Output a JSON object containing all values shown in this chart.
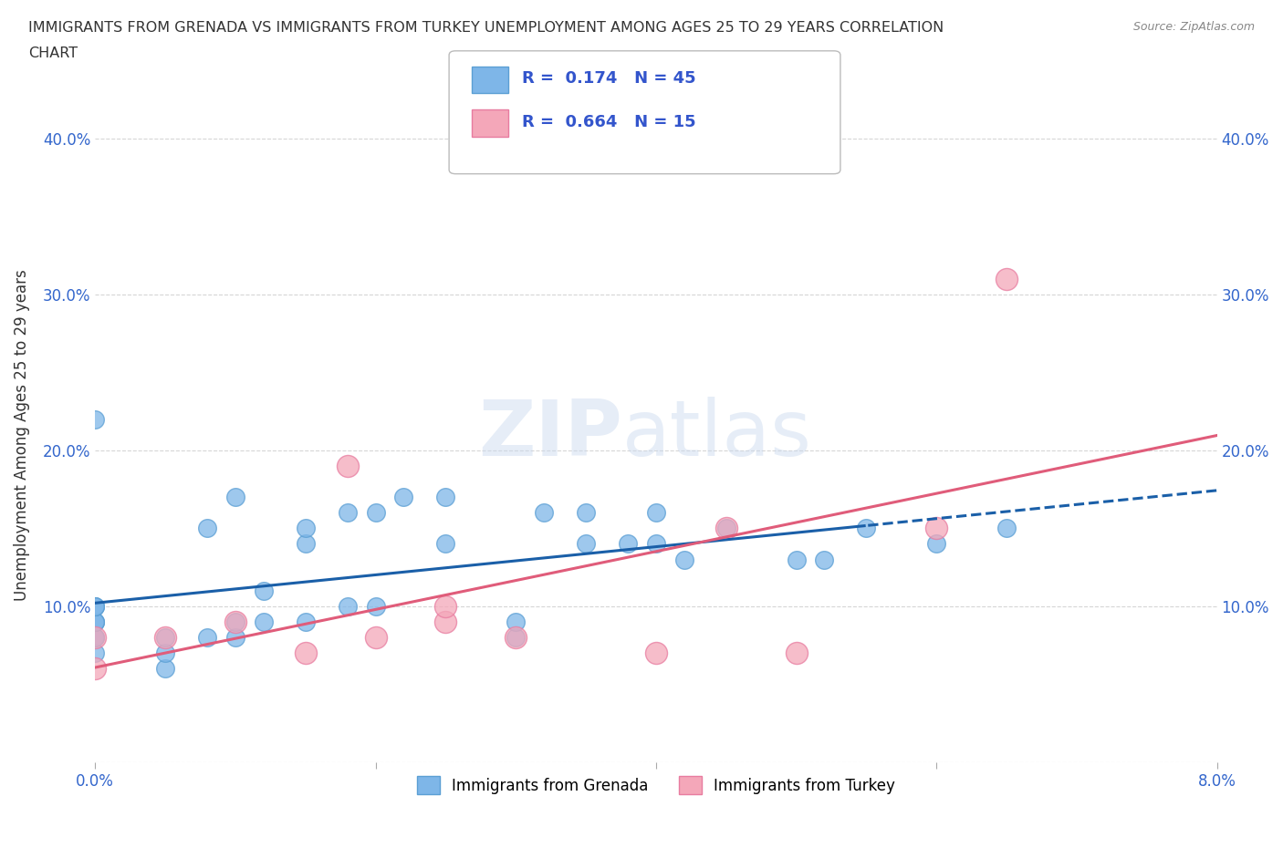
{
  "title_line1": "IMMIGRANTS FROM GRENADA VS IMMIGRANTS FROM TURKEY UNEMPLOYMENT AMONG AGES 25 TO 29 YEARS CORRELATION",
  "title_line2": "CHART",
  "source": "Source: ZipAtlas.com",
  "ylabel": "Unemployment Among Ages 25 to 29 years",
  "xlim": [
    0.0,
    0.08
  ],
  "ylim": [
    0.0,
    0.42
  ],
  "xticks": [
    0.0,
    0.02,
    0.04,
    0.06,
    0.08
  ],
  "xtick_labels": [
    "0.0%",
    "",
    "",
    "",
    "8.0%"
  ],
  "yticks": [
    0.0,
    0.1,
    0.2,
    0.3,
    0.4
  ],
  "ytick_labels": [
    "",
    "10.0%",
    "20.0%",
    "30.0%",
    "40.0%"
  ],
  "grenada_color": "#7EB6E8",
  "turkey_color": "#F4A7B9",
  "grenada_edge": "#5B9FD4",
  "turkey_edge": "#E87CA0",
  "trend_grenada_color": "#1a5fa8",
  "trend_turkey_color": "#e05c7a",
  "R_grenada": 0.174,
  "N_grenada": 45,
  "R_turkey": 0.664,
  "N_turkey": 15,
  "background_color": "#ffffff",
  "grenada_x": [
    0.0,
    0.0,
    0.0,
    0.0,
    0.0,
    0.0,
    0.0,
    0.0,
    0.0,
    0.0,
    0.005,
    0.005,
    0.005,
    0.008,
    0.008,
    0.01,
    0.01,
    0.01,
    0.012,
    0.012,
    0.015,
    0.015,
    0.015,
    0.018,
    0.018,
    0.02,
    0.02,
    0.022,
    0.025,
    0.025,
    0.03,
    0.03,
    0.032,
    0.035,
    0.035,
    0.038,
    0.04,
    0.04,
    0.042,
    0.045,
    0.05,
    0.052,
    0.055,
    0.06,
    0.065
  ],
  "grenada_y": [
    0.07,
    0.08,
    0.08,
    0.09,
    0.09,
    0.09,
    0.1,
    0.1,
    0.1,
    0.22,
    0.06,
    0.07,
    0.08,
    0.08,
    0.15,
    0.08,
    0.09,
    0.17,
    0.09,
    0.11,
    0.09,
    0.14,
    0.15,
    0.1,
    0.16,
    0.1,
    0.16,
    0.17,
    0.14,
    0.17,
    0.08,
    0.09,
    0.16,
    0.14,
    0.16,
    0.14,
    0.14,
    0.16,
    0.13,
    0.15,
    0.13,
    0.13,
    0.15,
    0.14,
    0.15
  ],
  "turkey_x": [
    0.0,
    0.0,
    0.005,
    0.01,
    0.015,
    0.018,
    0.02,
    0.025,
    0.025,
    0.03,
    0.04,
    0.045,
    0.05,
    0.06,
    0.065
  ],
  "turkey_y": [
    0.06,
    0.08,
    0.08,
    0.09,
    0.07,
    0.19,
    0.08,
    0.09,
    0.1,
    0.08,
    0.07,
    0.15,
    0.07,
    0.15,
    0.31
  ],
  "trend_split_x": 0.055
}
